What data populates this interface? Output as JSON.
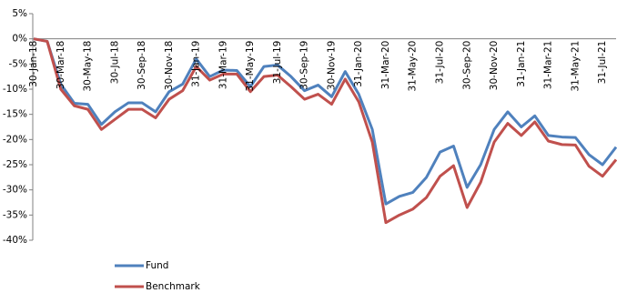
{
  "chart_data": {
    "type": "line",
    "categories": [
      "30-Jan-18",
      null,
      "30-Mar-18",
      null,
      "30-May-18",
      null,
      "30-Jul-18",
      null,
      "30-Sep-18",
      null,
      "30-Nov-18",
      null,
      "31-Jan-19",
      null,
      "31-Mar-19",
      null,
      "31-May-19",
      null,
      "31-Jul-19",
      null,
      "30-Sep-19",
      null,
      "30-Nov-19",
      null,
      "31-Jan-20",
      null,
      "31-Mar-20",
      null,
      "31-May-20",
      null,
      "31-Jul-20",
      null,
      "30-Sep-20",
      null,
      "30-Nov-20",
      null,
      "31-Jan-21",
      null,
      "31-Mar-21",
      null,
      "31-May-21",
      null,
      "31-Jul-21",
      null
    ],
    "series": [
      {
        "name": "Fund",
        "color": "#4f81bd",
        "values": [
          0,
          -0.5,
          -9,
          -12.8,
          -13,
          -17,
          -14.5,
          -12.7,
          -12.7,
          -14.5,
          -10.5,
          -9,
          -4,
          -7.5,
          -6.2,
          -6.3,
          -9.5,
          -5.5,
          -5.2,
          -7.5,
          -10.3,
          -9.2,
          -11.5,
          -6.5,
          -11,
          -18,
          -32.8,
          -31.3,
          -30.5,
          -27.5,
          -22.5,
          -21.3,
          -29.5,
          -25,
          -18,
          -14.5,
          -17.5,
          -15.3,
          -19.2,
          -19.5,
          -19.6,
          -23,
          -25,
          -21.5
        ]
      },
      {
        "name": "Benchmark",
        "color": "#c0504d",
        "values": [
          0,
          -0.5,
          -10,
          -13.3,
          -14,
          -18,
          -16,
          -14,
          -14,
          -15.7,
          -12,
          -10.3,
          -5.5,
          -8.2,
          -7,
          -7,
          -10.5,
          -7.5,
          -7.2,
          -9.5,
          -12,
          -11,
          -13,
          -8,
          -12.5,
          -20.5,
          -36.5,
          -35,
          -33.8,
          -31.5,
          -27.3,
          -25.2,
          -33.5,
          -28.5,
          -20.5,
          -16.8,
          -19.2,
          -16.5,
          -20.3,
          -21,
          -21.1,
          -25.3,
          -27.3,
          -24
        ]
      }
    ],
    "ylim": [
      -40,
      5
    ],
    "yticks": [
      {
        "value": 5,
        "label": "5%"
      },
      {
        "value": 0,
        "label": "0%"
      },
      {
        "value": -5,
        "label": "-5%"
      },
      {
        "value": -10,
        "label": "-10%"
      },
      {
        "value": -15,
        "label": "-15%"
      },
      {
        "value": -20,
        "label": "-20%"
      },
      {
        "value": -25,
        "label": "-25%"
      },
      {
        "value": -30,
        "label": "-30%"
      },
      {
        "value": -35,
        "label": "-35%"
      },
      {
        "value": -40,
        "label": "-40%"
      }
    ],
    "grid": false
  }
}
